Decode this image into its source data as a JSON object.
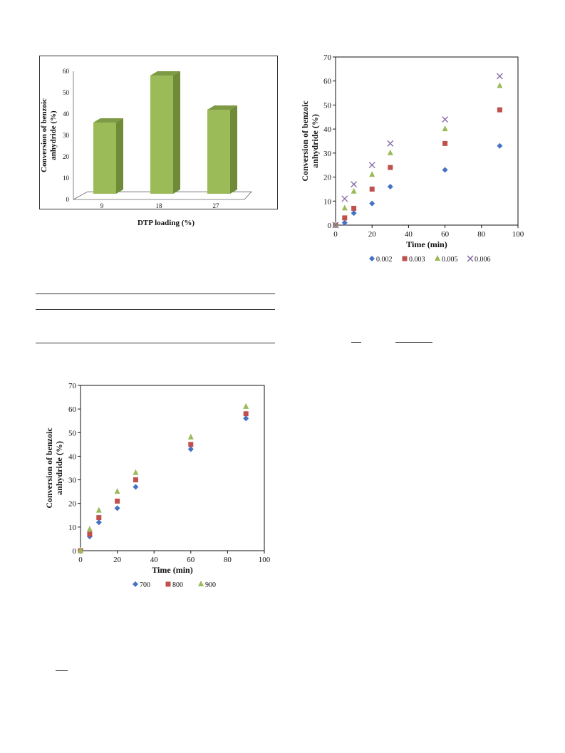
{
  "chart_data": [
    {
      "type": "bar",
      "title": "",
      "xlabel": "DTP loading (%)",
      "ylabel": "Conversion of benzoic anhydride (%)",
      "categories": [
        "9",
        "18",
        "27"
      ],
      "values": [
        36,
        58,
        42
      ],
      "ylim": [
        0,
        60
      ],
      "yticks": [
        "0",
        "10",
        "20",
        "30",
        "40",
        "50",
        "60"
      ],
      "grid": false,
      "legend": "none",
      "style": "3d-columns",
      "colors": {
        "front": "#9BBB59",
        "side": "#6F8B38",
        "top": "#7E9A45"
      }
    },
    {
      "type": "scatter",
      "title": "",
      "xlabel": "Time (min)",
      "ylabel": "Conversion of benzoic anhydride (%)",
      "xlim": [
        0,
        100
      ],
      "ylim": [
        0,
        70
      ],
      "xticks": [
        "0",
        "20",
        "40",
        "60",
        "80",
        "100"
      ],
      "yticks": [
        "0",
        "10",
        "20",
        "30",
        "40",
        "50",
        "60",
        "70"
      ],
      "grid": false,
      "legend": "bottom",
      "x": [
        0,
        5,
        10,
        20,
        30,
        60,
        90
      ],
      "series": [
        {
          "name": "0.002",
          "marker": "diamond",
          "color": "#4472C4",
          "values": [
            0,
            1,
            5,
            9,
            16,
            23,
            33
          ]
        },
        {
          "name": "0.003",
          "marker": "square",
          "color": "#C0504D",
          "values": [
            0,
            3,
            7,
            15,
            24,
            34,
            48
          ]
        },
        {
          "name": "0.005",
          "marker": "triangle",
          "color": "#9BBB59",
          "values": [
            0,
            7,
            14,
            21,
            30,
            40,
            58
          ]
        },
        {
          "name": "0.006",
          "marker": "x",
          "color": "#8064A2",
          "values": [
            0,
            11,
            17,
            25,
            34,
            44,
            62
          ]
        }
      ]
    },
    {
      "type": "scatter",
      "title": "",
      "xlabel": "Time (min)",
      "ylabel": "Conversion of benzoic anhydride (%)",
      "xlim": [
        0,
        100
      ],
      "ylim": [
        0,
        70
      ],
      "xticks": [
        "0",
        "20",
        "40",
        "60",
        "80",
        "100"
      ],
      "yticks": [
        "0",
        "10",
        "20",
        "30",
        "40",
        "50",
        "60",
        "70"
      ],
      "grid": false,
      "legend": "bottom",
      "x": [
        0,
        5,
        10,
        20,
        30,
        60,
        90
      ],
      "series": [
        {
          "name": "700",
          "marker": "diamond",
          "color": "#4472C4",
          "values": [
            0,
            6,
            12,
            18,
            27,
            43,
            56
          ]
        },
        {
          "name": "800",
          "marker": "square",
          "color": "#C0504D",
          "values": [
            0,
            7,
            14,
            21,
            30,
            45,
            58
          ]
        },
        {
          "name": "900",
          "marker": "triangle",
          "color": "#9BBB59",
          "values": [
            0,
            9,
            17,
            25,
            33,
            48,
            61
          ]
        }
      ]
    }
  ]
}
